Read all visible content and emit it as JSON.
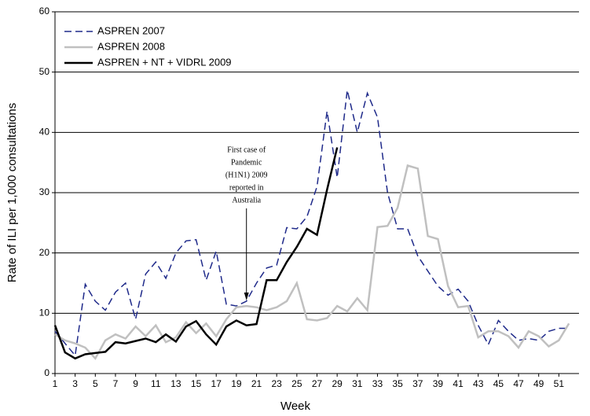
{
  "chart_data": {
    "type": "line",
    "x_label": "Week",
    "y_label": "Rate of ILI per 1,000 consultations",
    "x": [
      1,
      2,
      3,
      4,
      5,
      6,
      7,
      8,
      9,
      10,
      11,
      12,
      13,
      14,
      15,
      16,
      17,
      18,
      19,
      20,
      21,
      22,
      23,
      24,
      25,
      26,
      27,
      28,
      29,
      30,
      31,
      32,
      33,
      34,
      35,
      36,
      37,
      38,
      39,
      40,
      41,
      42,
      43,
      44,
      45,
      46,
      47,
      48,
      49,
      50,
      51,
      52
    ],
    "series": [
      {
        "name": "ASPREN 2007",
        "color": "#1f2a8a",
        "dash": "dashed",
        "values": [
          7,
          5,
          3,
          14.8,
          12,
          10.5,
          13.5,
          15,
          9,
          16.5,
          18.5,
          15.8,
          20,
          22,
          22.2,
          15.5,
          20.3,
          11.5,
          11.2,
          12,
          15,
          17.5,
          18,
          24.2,
          24,
          26,
          31,
          43.5,
          32.5,
          47,
          40,
          46.5,
          42.5,
          30,
          24,
          24,
          19.5,
          17,
          14.5,
          13,
          14,
          12,
          8,
          4.8,
          8.8,
          7,
          5.5,
          5.8,
          5.5,
          7,
          7.5,
          7.5
        ]
      },
      {
        "name": "ASPREN 2008",
        "color": "#c0c0c0",
        "dash": "solid",
        "values": [
          6.5,
          5.5,
          5,
          4.3,
          2.5,
          5.5,
          6.5,
          5.8,
          7.8,
          6.2,
          8,
          5.2,
          6,
          8.5,
          6.7,
          8.3,
          6.2,
          9,
          11,
          11.2,
          11,
          10.5,
          11,
          12,
          15,
          9,
          8.8,
          9.2,
          11.2,
          10.3,
          12.5,
          10.5,
          24.3,
          24.5,
          27.5,
          34.5,
          34,
          22.8,
          22.3,
          14.5,
          11,
          11.2,
          6,
          7,
          7,
          6.2,
          4.3,
          7,
          6.2,
          4.5,
          5.5,
          8.3
        ]
      },
      {
        "name": "ASPREN + NT + VIDRL 2009",
        "color": "#000000",
        "dash": "solid",
        "values": [
          8,
          3.5,
          2.5,
          3.2,
          3.4,
          3.6,
          5.2,
          5,
          5.4,
          5.8,
          5.2,
          6.5,
          5.3,
          7.8,
          8.7,
          6.5,
          4.8,
          7.8,
          8.8,
          8,
          8.2,
          15.5,
          15.5,
          18.5,
          21,
          24,
          23,
          30.5,
          37.5,
          null,
          null,
          null,
          null,
          null,
          null,
          null,
          null,
          null,
          null,
          null,
          null,
          null,
          null,
          null,
          null,
          null,
          null,
          null,
          null,
          null,
          null,
          null
        ]
      }
    ],
    "xlim": [
      1,
      53
    ],
    "xticks": [
      1,
      3,
      5,
      7,
      9,
      11,
      13,
      15,
      17,
      19,
      21,
      23,
      25,
      27,
      29,
      31,
      33,
      35,
      37,
      39,
      41,
      43,
      45,
      47,
      49,
      51
    ],
    "ylim": [
      0,
      60
    ],
    "yticks": [
      0,
      10,
      20,
      30,
      40,
      50,
      60
    ],
    "grid": true,
    "legend": "upper left",
    "annotation": {
      "lines": [
        "First case of",
        "Pandemic",
        "(H1N1) 2009",
        "reported in",
        "Australia"
      ],
      "x": 20
    }
  }
}
